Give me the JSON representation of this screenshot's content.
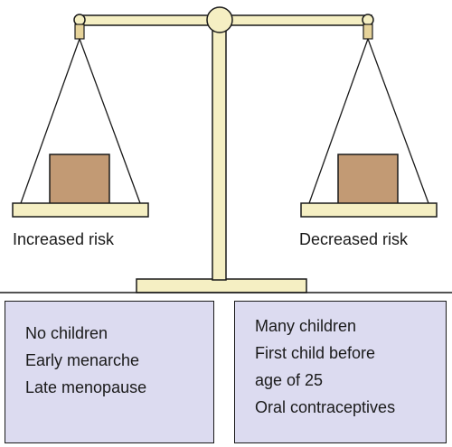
{
  "left_pan": {
    "label": "Increased risk",
    "factors": [
      "No children",
      "Early menarche",
      "Late menopause"
    ]
  },
  "right_pan": {
    "label": "Decreased risk",
    "factors": [
      "Many children",
      "First child before",
      "age of 25",
      "Oral contraceptives"
    ]
  },
  "colors": {
    "scale_fill": "#f5efc3",
    "weight_fill": "#c29a74",
    "factor_box_fill": "#dcdbf0",
    "outline": "#1a1a1a"
  }
}
